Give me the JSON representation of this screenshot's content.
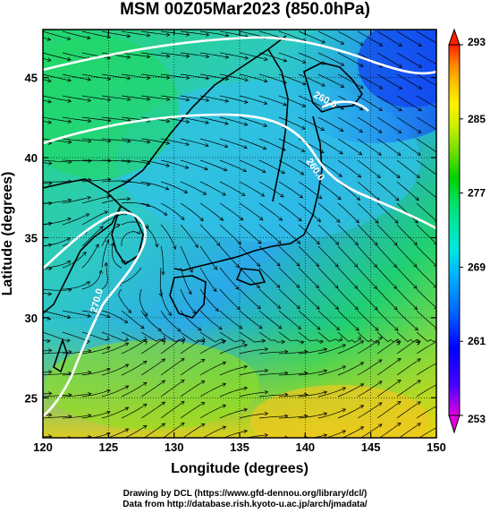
{
  "title": "MSM 00Z05Mar2023 (850.0hPa)",
  "x_axis": {
    "label": "Longitude (degrees)",
    "ticks": [
      "120",
      "125",
      "130",
      "135",
      "140",
      "145",
      "150"
    ],
    "range": [
      120,
      150
    ]
  },
  "y_axis": {
    "label": "Latitude  (degrees)",
    "ticks": [
      "25",
      "30",
      "35",
      "40",
      "45"
    ],
    "range": [
      22.5,
      48
    ]
  },
  "colorbar": {
    "ticks": [
      "293",
      "285",
      "277",
      "269",
      "261",
      "253"
    ],
    "range": [
      253,
      293
    ],
    "colors": [
      "#e000e0",
      "#4b00ff",
      "#0000ff",
      "#0066ff",
      "#00b4ff",
      "#00e8e0",
      "#00e6a0",
      "#00e060",
      "#00d200",
      "#7ce000",
      "#ccf000",
      "#fff000",
      "#ffc000",
      "#ff8000",
      "#ff2000"
    ]
  },
  "contours": [
    {
      "label": "260.0"
    },
    {
      "label": "260.0"
    },
    {
      "label": "270.0"
    }
  ],
  "credits": {
    "line1": "Drawing by DCL (https://www.gfd-dennou.org/library/dcl/)",
    "line2": "Data from http://database.rish.kyoto-u.ac.jp/arch/jmadata/"
  }
}
